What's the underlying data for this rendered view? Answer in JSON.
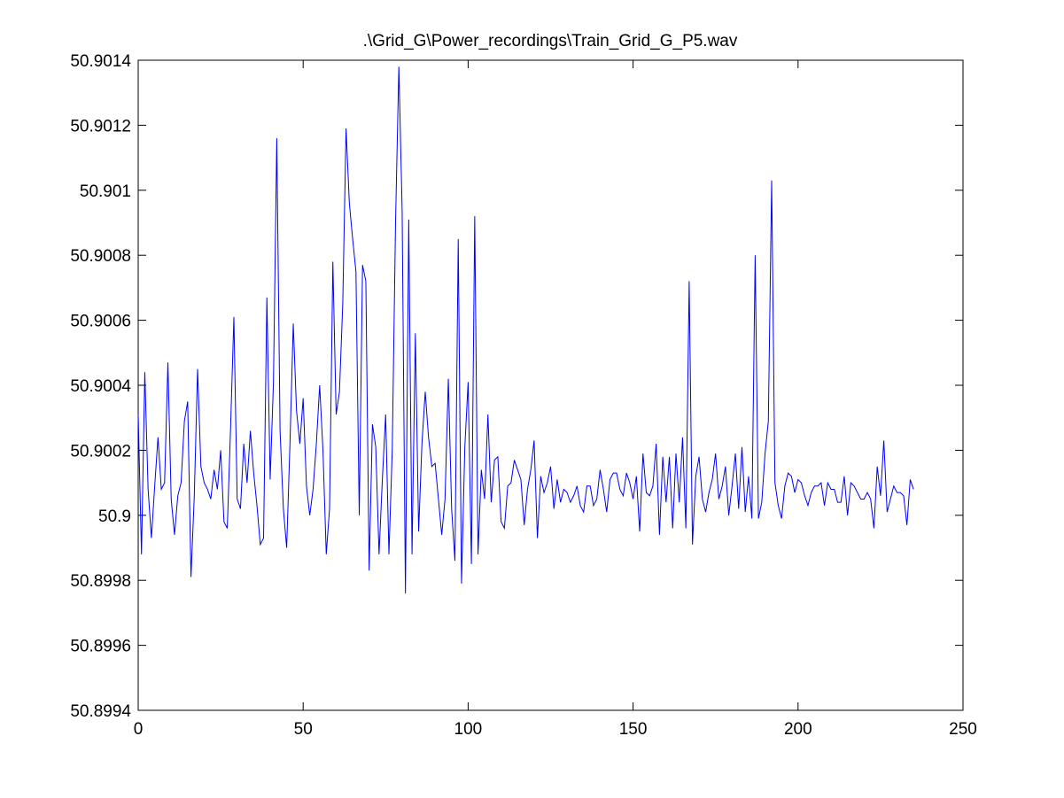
{
  "chart_data": {
    "type": "line",
    "title": ".\\Grid_G\\Power_recordings\\Train_Grid_G_P5.wav",
    "xlabel": "",
    "ylabel": "",
    "xlim": [
      0,
      250
    ],
    "ylim": [
      50.8994,
      50.9014
    ],
    "xticks": [
      0,
      50,
      100,
      150,
      200,
      250
    ],
    "xtick_labels": [
      "0",
      "50",
      "100",
      "150",
      "200",
      "250"
    ],
    "yticks": [
      50.8994,
      50.8996,
      50.8998,
      50.9,
      50.9002,
      50.9004,
      50.9006,
      50.9008,
      50.901,
      50.9012,
      50.9014
    ],
    "ytick_labels": [
      "50.8994",
      "50.8996",
      "50.8998",
      "50.9",
      "50.9002",
      "50.9004",
      "50.9006",
      "50.9008",
      "50.901",
      "50.9012",
      "50.9014"
    ],
    "grid": false,
    "line_color": "#0000ff",
    "series": [
      {
        "x_start": 0,
        "x_step": 1,
        "y": [
          50.90031,
          50.89988,
          50.90044,
          50.90008,
          50.89993,
          50.90009,
          50.90024,
          50.90008,
          50.9001,
          50.90047,
          50.90005,
          50.89994,
          50.90006,
          50.9001,
          50.90029,
          50.90035,
          50.89981,
          50.90006,
          50.90045,
          50.90015,
          50.9001,
          50.90008,
          50.90005,
          50.90014,
          50.90008,
          50.9002,
          50.89998,
          50.89996,
          50.90027,
          50.90061,
          50.90005,
          50.90002,
          50.90022,
          50.9001,
          50.90026,
          50.90013,
          50.90003,
          50.89991,
          50.89993,
          50.90067,
          50.90011,
          50.90041,
          50.90116,
          50.90026,
          50.90002,
          50.8999,
          50.90022,
          50.90059,
          50.90032,
          50.90022,
          50.90036,
          50.90009,
          50.9,
          50.90008,
          50.90022,
          50.9004,
          50.9002,
          50.89988,
          50.90002,
          50.90078,
          50.90031,
          50.90038,
          50.90065,
          50.90119,
          50.90096,
          50.90085,
          50.90075,
          50.9,
          50.90077,
          50.90072,
          50.89983,
          50.90028,
          50.90021,
          50.89988,
          50.90011,
          50.90031,
          50.89988,
          50.9002,
          50.9009,
          50.90138,
          50.90094,
          50.89976,
          50.90091,
          50.89988,
          50.90056,
          50.89995,
          50.90022,
          50.90038,
          50.90024,
          50.90015,
          50.90016,
          50.90005,
          50.89994,
          50.90005,
          50.90042,
          50.90002,
          50.89986,
          50.90085,
          50.89979,
          50.90021,
          50.90041,
          50.89985,
          50.90092,
          50.89988,
          50.90014,
          50.90005,
          50.90031,
          50.90004,
          50.90017,
          50.90018,
          50.89998,
          50.89996,
          50.90009,
          50.9001,
          50.90017,
          50.90014,
          50.90011,
          50.89997,
          50.90008,
          50.90014,
          50.90023,
          50.89993,
          50.90012,
          50.90007,
          50.9001,
          50.90015,
          50.90002,
          50.90011,
          50.90004,
          50.90008,
          50.90007,
          50.90004,
          50.90006,
          50.90009,
          50.90003,
          50.90001,
          50.90009,
          50.90009,
          50.90003,
          50.90005,
          50.90014,
          50.90008,
          50.90001,
          50.90011,
          50.90013,
          50.90013,
          50.90008,
          50.90006,
          50.90013,
          50.9001,
          50.90005,
          50.90012,
          50.89995,
          50.90019,
          50.90007,
          50.90006,
          50.90009,
          50.90022,
          50.89994,
          50.90018,
          50.90004,
          50.90018,
          50.89996,
          50.90019,
          50.90004,
          50.90024,
          50.89996,
          50.90072,
          50.89991,
          50.90012,
          50.90018,
          50.90005,
          50.90001,
          50.90007,
          50.90011,
          50.90019,
          50.90005,
          50.90009,
          50.90015,
          50.9,
          50.90009,
          50.90019,
          50.90002,
          50.90021,
          50.90001,
          50.90012,
          50.89999,
          50.9008,
          50.89999,
          50.90004,
          50.90019,
          50.90029,
          50.90103,
          50.9001,
          50.90003,
          50.89999,
          50.90009,
          50.90013,
          50.90012,
          50.90007,
          50.90011,
          50.9001,
          50.90006,
          50.90003,
          50.90007,
          50.90009,
          50.90009,
          50.9001,
          50.90003,
          50.9001,
          50.90008,
          50.90008,
          50.90004,
          50.90004,
          50.90012,
          50.9,
          50.9001,
          50.90009,
          50.90007,
          50.90005,
          50.90005,
          50.90007,
          50.90005,
          50.89996,
          50.90015,
          50.90006,
          50.90023,
          50.90001,
          50.90005,
          50.90009,
          50.90007,
          50.90007,
          50.90006,
          50.89997,
          50.90011,
          50.90008
        ]
      }
    ]
  }
}
